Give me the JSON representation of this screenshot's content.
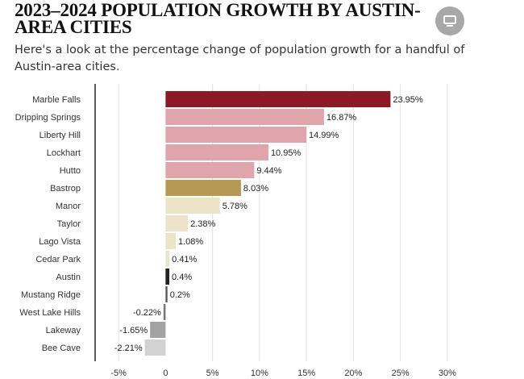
{
  "header": {
    "title": "2023–2024 POPULATION GROWTH BY AUSTIN-AREA CITIES",
    "subtitle": "Here's a look at the percentage change of population growth for a handful of Austin-area cities."
  },
  "screen_icon": "monitor-icon",
  "chart_data": {
    "type": "bar",
    "orientation": "horizontal",
    "title": "2023–2024 POPULATION GROWTH BY AUSTIN-AREA CITIES",
    "xlabel": "",
    "ylabel": "",
    "xlim": [
      -7.5,
      32.5
    ],
    "grid": true,
    "unit": "%",
    "categories": [
      "Marble Falls",
      "Dripping Springs",
      "Liberty Hill",
      "Lockhart",
      "Hutto",
      "Bastrop",
      "Manor",
      "Taylor",
      "Lago Vista",
      "Cedar Park",
      "Austin",
      "Mustang Ridge",
      "West Lake Hills",
      "Lakeway",
      "Bee Cave"
    ],
    "values": [
      23.95,
      16.87,
      14.99,
      10.95,
      9.44,
      8.03,
      5.78,
      2.38,
      1.08,
      0.41,
      0.4,
      0.2,
      -0.22,
      -1.65,
      -2.21
    ],
    "value_labels": [
      "23.95%",
      "16.87%",
      "14.99%",
      "10.95%",
      "9.44%",
      "8.03%",
      "5.78%",
      "2.38%",
      "1.08%",
      "0.41%",
      "0.4%",
      "0.2%",
      "-0.22%",
      "-1.65%",
      "-2.21%"
    ],
    "colors": [
      "#8b1a24",
      "#e0a4ab",
      "#e0a4ab",
      "#e0a4ab",
      "#e0a4ab",
      "#b59a55",
      "#ede3c8",
      "#ede3c8",
      "#ede3c8",
      "#ede3c8",
      "#222222",
      "#555555",
      "#777777",
      "#a3a3a3",
      "#d2d2d2"
    ],
    "x_ticks": [
      -5,
      0,
      5,
      10,
      15,
      20,
      25,
      30
    ],
    "x_tick_labels": [
      "-5%",
      "0",
      "5%",
      "10%",
      "15%",
      "20%",
      "25%",
      "30%"
    ]
  }
}
